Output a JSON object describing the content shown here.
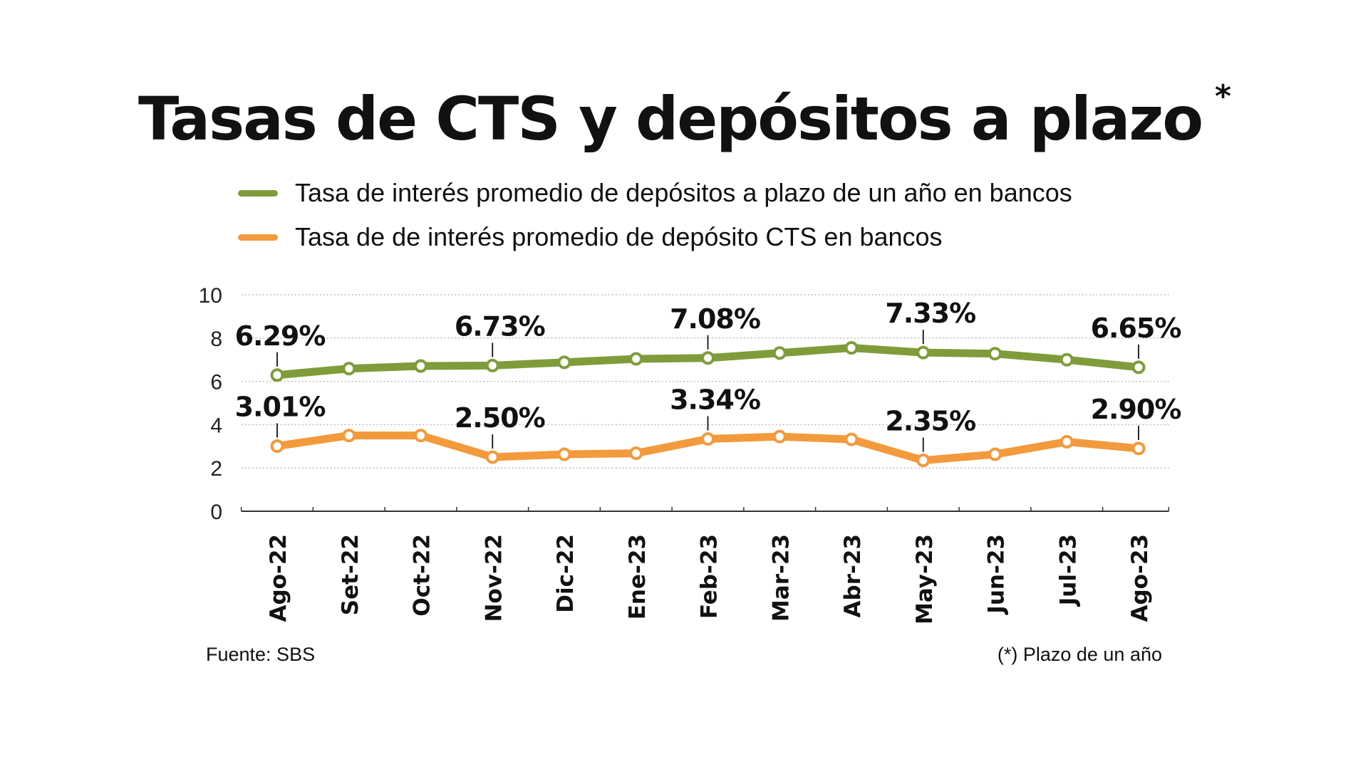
{
  "chart_data": {
    "type": "line",
    "title": "Tasas de CTS y  depósitos a plazo",
    "title_mark": "*",
    "categories": [
      "Ago-22",
      "Set-22",
      "Oct-22",
      "Nov-22",
      "Dic-22",
      "Ene-23",
      "Feb-23",
      "Mar-23",
      "Abr-23",
      "May-23",
      "Jun-23",
      "Jul-23",
      "Ago-23"
    ],
    "ylim": [
      0,
      10
    ],
    "yticks": [
      "0",
      "2",
      "4",
      "6",
      "8",
      "10"
    ],
    "grid": true,
    "legend_position": "top",
    "series": [
      {
        "name": "Tasa de interés promedio de depósitos a plazo de un año en bancos",
        "color": "#7f9c3a",
        "values": [
          6.29,
          6.59,
          6.71,
          6.73,
          6.88,
          7.04,
          7.08,
          7.31,
          7.55,
          7.33,
          7.28,
          7.0,
          6.65
        ],
        "labels": {
          "0": "6.29%",
          "3": "6.73%",
          "6": "7.08%",
          "9": "7.33%",
          "12": "6.65%"
        }
      },
      {
        "name": "Tasa de de interés promedio de depósito CTS en bancos",
        "color": "#f39a3c",
        "values": [
          3.01,
          3.5,
          3.5,
          2.5,
          2.63,
          2.68,
          3.34,
          3.45,
          3.32,
          2.35,
          2.63,
          3.21,
          2.9
        ],
        "labels": {
          "0": "3.01%",
          "3": "2.50%",
          "6": "3.34%",
          "9": "2.35%",
          "12": "2.90%"
        }
      }
    ]
  },
  "footer": {
    "source": "Fuente: SBS",
    "note": "(*) Plazo de un año"
  }
}
